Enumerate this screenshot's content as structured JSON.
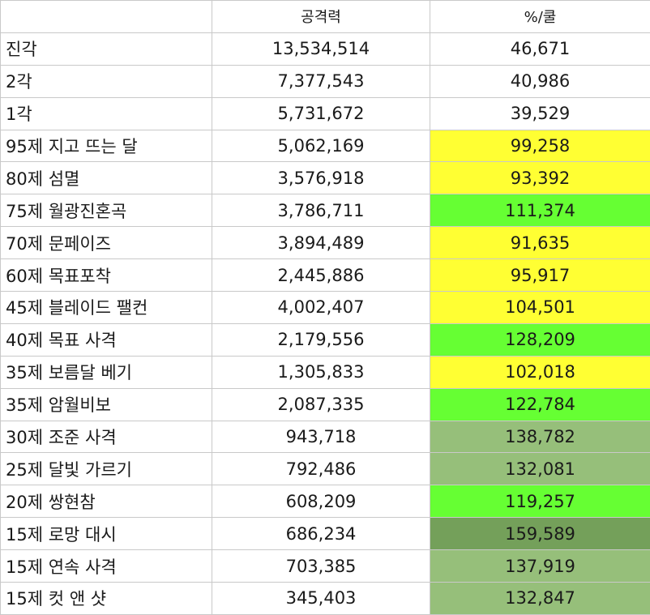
{
  "header": {
    "name": "",
    "attack": "공격력",
    "per_cooldown": "%/쿨"
  },
  "colors": {
    "yellow": "#ffff33",
    "bright_green": "#66ff33",
    "sage_green": "#96bf7a",
    "dark_green": "#74a05a",
    "none": "#ffffff"
  },
  "rows": [
    {
      "name": "진각",
      "attack": "13,534,514",
      "per_cooldown": "46,671",
      "highlight": "none"
    },
    {
      "name": "2각",
      "attack": "7,377,543",
      "per_cooldown": "40,986",
      "highlight": "none"
    },
    {
      "name": "1각",
      "attack": "5,731,672",
      "per_cooldown": "39,529",
      "highlight": "none"
    },
    {
      "name": "95제 지고 뜨는 달",
      "attack": "5,062,169",
      "per_cooldown": "99,258",
      "highlight": "yellow"
    },
    {
      "name": "80제 섬멸",
      "attack": "3,576,918",
      "per_cooldown": "93,392",
      "highlight": "yellow"
    },
    {
      "name": "75제 월광진혼곡",
      "attack": "3,786,711",
      "per_cooldown": "111,374",
      "highlight": "bright_green"
    },
    {
      "name": "70제 문페이즈",
      "attack": "3,894,489",
      "per_cooldown": "91,635",
      "highlight": "yellow"
    },
    {
      "name": "60제 목표포착",
      "attack": "2,445,886",
      "per_cooldown": "95,917",
      "highlight": "yellow"
    },
    {
      "name": "45제 블레이드 팰컨",
      "attack": "4,002,407",
      "per_cooldown": "104,501",
      "highlight": "yellow"
    },
    {
      "name": "40제 목표 사격",
      "attack": "2,179,556",
      "per_cooldown": "128,209",
      "highlight": "bright_green"
    },
    {
      "name": "35제 보름달 베기",
      "attack": "1,305,833",
      "per_cooldown": "102,018",
      "highlight": "yellow"
    },
    {
      "name": "35제 암월비보",
      "attack": "2,087,335",
      "per_cooldown": "122,784",
      "highlight": "bright_green"
    },
    {
      "name": "30제 조준 사격",
      "attack": "943,718",
      "per_cooldown": "138,782",
      "highlight": "sage_green"
    },
    {
      "name": "25제 달빛 가르기",
      "attack": "792,486",
      "per_cooldown": "132,081",
      "highlight": "sage_green"
    },
    {
      "name": "20제 쌍현참",
      "attack": "608,209",
      "per_cooldown": "119,257",
      "highlight": "bright_green"
    },
    {
      "name": "15제 로망 대시",
      "attack": "686,234",
      "per_cooldown": "159,589",
      "highlight": "dark_green"
    },
    {
      "name": "15제 연속 사격",
      "attack": "703,385",
      "per_cooldown": "137,919",
      "highlight": "sage_green"
    },
    {
      "name": "15제 컷 앤 샷",
      "attack": "345,403",
      "per_cooldown": "132,847",
      "highlight": "sage_green"
    }
  ]
}
